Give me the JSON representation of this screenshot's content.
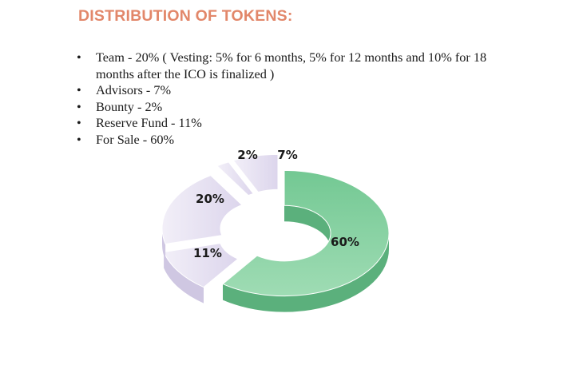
{
  "heading": "DISTRIBUTION OF TOKENS:",
  "bullets": [
    "Team - 20%  ( Vesting: 5% for 6 months, 5% for 12 months and 10% for 18 months after the ICO is finalized )",
    "Advisors - 7%",
    "Bounty - 2%",
    "Reserve Fund - 11%",
    "For Sale -  60%"
  ],
  "bullet_glyph": "•",
  "colors": {
    "heading": "#e2876a",
    "for_sale": "#7fcf9d",
    "others": "#e7e2f3"
  },
  "chart_data": {
    "type": "pie",
    "style": "3d-donut",
    "categories": [
      "For Sale",
      "Reserve Fund",
      "Team",
      "Bounty",
      "Advisors"
    ],
    "values": [
      60,
      11,
      20,
      2,
      7
    ],
    "data_labels": [
      "60%",
      "11%",
      "20%",
      "2%",
      "7%"
    ],
    "legend": "none"
  }
}
